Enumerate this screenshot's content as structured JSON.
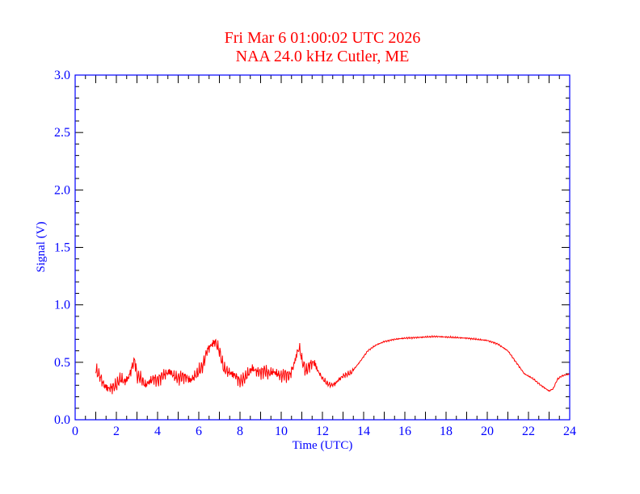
{
  "chart_data": {
    "type": "line",
    "title": "Fri Mar 6 01:00:02 UTC 2026",
    "subtitle": "NAA 24.0 kHz Cutler, ME",
    "xlabel": "Time (UTC)",
    "ylabel": "Signal (V)",
    "xlim": [
      0,
      24
    ],
    "ylim": [
      0,
      3.0
    ],
    "xticks": [
      "0",
      "2",
      "4",
      "6",
      "8",
      "10",
      "12",
      "14",
      "16",
      "18",
      "20",
      "22",
      "24"
    ],
    "yticks": [
      "0.0",
      "0.5",
      "1.0",
      "1.5",
      "2.0",
      "2.5",
      "3.0"
    ],
    "grid": false,
    "series": [
      {
        "name": "NAA signal",
        "color": "#ff0000",
        "x": [
          1.0,
          1.2,
          1.4,
          1.6,
          1.8,
          2.0,
          2.2,
          2.4,
          2.6,
          2.8,
          2.9,
          3.0,
          3.2,
          3.4,
          3.6,
          3.8,
          4.0,
          4.2,
          4.4,
          4.6,
          4.8,
          5.0,
          5.2,
          5.4,
          5.6,
          5.8,
          6.0,
          6.2,
          6.4,
          6.6,
          6.8,
          7.0,
          7.2,
          7.4,
          7.6,
          7.8,
          8.0,
          8.2,
          8.4,
          8.6,
          8.8,
          9.0,
          9.2,
          9.4,
          9.6,
          9.8,
          10.0,
          10.2,
          10.4,
          10.6,
          10.8,
          10.9,
          11.0,
          11.2,
          11.4,
          11.6,
          11.8,
          12.0,
          12.2,
          12.4,
          12.6,
          12.8,
          13.0,
          13.4,
          13.8,
          14.2,
          14.6,
          15.0,
          15.5,
          16.0,
          17.0,
          17.5,
          18.0,
          19.0,
          20.0,
          20.5,
          21.0,
          21.4,
          21.8,
          22.2,
          22.6,
          23.0,
          23.2,
          23.4,
          23.6,
          24.0
        ],
        "y": [
          0.43,
          0.38,
          0.3,
          0.27,
          0.28,
          0.3,
          0.36,
          0.33,
          0.37,
          0.48,
          0.52,
          0.38,
          0.36,
          0.3,
          0.33,
          0.36,
          0.34,
          0.38,
          0.4,
          0.42,
          0.38,
          0.36,
          0.38,
          0.37,
          0.34,
          0.38,
          0.42,
          0.47,
          0.6,
          0.65,
          0.68,
          0.6,
          0.45,
          0.42,
          0.4,
          0.38,
          0.33,
          0.36,
          0.4,
          0.45,
          0.42,
          0.41,
          0.43,
          0.4,
          0.42,
          0.4,
          0.38,
          0.4,
          0.38,
          0.47,
          0.6,
          0.62,
          0.52,
          0.42,
          0.48,
          0.5,
          0.42,
          0.36,
          0.32,
          0.3,
          0.31,
          0.35,
          0.38,
          0.41,
          0.5,
          0.6,
          0.65,
          0.68,
          0.7,
          0.71,
          0.72,
          0.725,
          0.72,
          0.71,
          0.69,
          0.66,
          0.6,
          0.5,
          0.4,
          0.36,
          0.3,
          0.25,
          0.27,
          0.35,
          0.38,
          0.4
        ]
      }
    ]
  }
}
